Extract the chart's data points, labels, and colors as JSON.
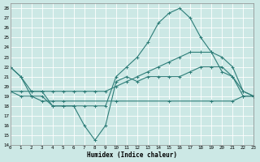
{
  "xlabel": "Humidex (Indice chaleur)",
  "background_color": "#cce8e5",
  "line_color": "#2d7d78",
  "grid_color": "#ffffff",
  "xlim": [
    0,
    23
  ],
  "ylim": [
    14,
    28.5
  ],
  "yticks": [
    14,
    15,
    16,
    17,
    18,
    19,
    20,
    21,
    22,
    23,
    24,
    25,
    26,
    27,
    28
  ],
  "xticks": [
    0,
    1,
    2,
    3,
    4,
    5,
    6,
    7,
    8,
    9,
    10,
    11,
    12,
    13,
    14,
    15,
    16,
    17,
    18,
    19,
    20,
    21,
    22,
    23
  ],
  "line1_x": [
    0,
    1,
    2,
    3,
    4,
    5,
    6,
    7,
    8,
    9,
    10,
    11,
    12,
    13,
    14,
    15,
    16,
    17,
    18,
    19,
    20,
    21,
    22,
    23
  ],
  "line1_y": [
    22,
    21,
    19,
    19,
    18,
    18,
    18,
    16,
    14.5,
    16,
    20.5,
    21,
    20.5,
    21,
    21,
    21,
    21,
    21.5,
    22,
    22,
    22,
    21,
    19.5,
    19
  ],
  "line2_x": [
    0,
    1,
    2,
    3,
    4,
    5,
    6,
    7,
    8,
    9,
    10,
    11,
    12,
    13,
    14,
    15,
    16,
    17,
    18,
    19,
    20,
    21,
    22,
    23
  ],
  "line2_y": [
    22,
    21,
    19.5,
    19.5,
    18,
    18,
    18,
    18,
    18,
    18,
    21,
    22,
    23,
    24.5,
    26.5,
    27.5,
    28,
    27,
    25,
    23.5,
    21.5,
    21,
    19,
    19
  ],
  "line3_x": [
    0,
    1,
    2,
    3,
    4,
    5,
    6,
    7,
    8,
    9,
    10,
    11,
    12,
    13,
    14,
    15,
    16,
    17,
    18,
    19,
    20,
    21,
    22,
    23
  ],
  "line3_y": [
    19.5,
    19.5,
    19.5,
    19.5,
    19.5,
    19.5,
    19.5,
    19.5,
    19.5,
    19.5,
    20,
    20.5,
    21,
    21.5,
    22,
    22.5,
    23,
    23.5,
    23.5,
    23.5,
    23,
    22,
    19.5,
    19
  ],
  "line4_x": [
    0,
    1,
    2,
    3,
    4,
    5,
    10,
    15,
    19,
    21,
    22,
    23
  ],
  "line4_y": [
    19.5,
    19,
    19,
    18.5,
    18.5,
    18.5,
    18.5,
    18.5,
    18.5,
    18.5,
    19,
    19
  ]
}
